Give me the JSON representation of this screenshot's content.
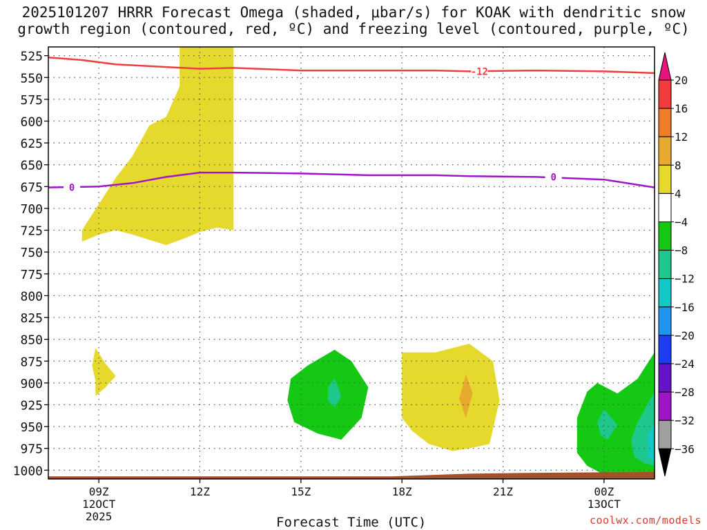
{
  "title_line1": "2025101207 HRRR Forecast Omega (shaded, μbar/s) for KOAK with dendritic snow",
  "title_line2": "growth region (contoured, red, ºC) and freezing level (contoured, purple, ºC)",
  "watermark": "coolwx.com/models",
  "chart_data": {
    "type": "contour",
    "title": "2025101207 HRRR Forecast Omega (shaded, μbar/s) for KOAK with dendritic snow growth region (contoured, red, ºC) and freezing level (contoured, purple, ºC)",
    "xlabel": "Forecast Time (UTC)",
    "ylabel": "",
    "xlim": [
      7.5,
      25.5
    ],
    "ylim": [
      1010,
      515
    ],
    "x_ticks": [
      {
        "value": 9,
        "label": "09Z",
        "date": "12OCT",
        "year": "2025"
      },
      {
        "value": 12,
        "label": "12Z"
      },
      {
        "value": 15,
        "label": "15Z"
      },
      {
        "value": 18,
        "label": "18Z"
      },
      {
        "value": 21,
        "label": "21Z"
      },
      {
        "value": 24,
        "label": "00Z",
        "date": "13OCT"
      }
    ],
    "y_ticks": [
      525,
      550,
      575,
      600,
      625,
      650,
      675,
      700,
      725,
      750,
      775,
      800,
      825,
      850,
      875,
      900,
      925,
      950,
      975,
      1000
    ],
    "grid": true,
    "colorbar": {
      "labels": [
        "20",
        "16",
        "12",
        "8",
        "4",
        "−4",
        "−8",
        "−12",
        "−16",
        "−20",
        "−24",
        "−28",
        "−32",
        "−36"
      ],
      "colors": [
        "#f03c3c",
        "#f07d28",
        "#e8aa2e",
        "#e6d92e",
        "#ffffff",
        "#14c814",
        "#1ec88c",
        "#14c8c8",
        "#1e96f0",
        "#1e3cf0",
        "#6414c8",
        "#a014c8",
        "#a0a0a0"
      ],
      "top_arrow_color": "#e6147d",
      "bottom_arrow_color": "#000000"
    },
    "series": [
      {
        "name": "-12",
        "color": "#f03c3c",
        "points": [
          [
            7.5,
            527
          ],
          [
            8.5,
            530
          ],
          [
            9.5,
            535
          ],
          [
            11,
            538
          ],
          [
            12,
            540
          ],
          [
            13,
            539
          ],
          [
            15,
            542
          ],
          [
            17,
            542
          ],
          [
            19,
            542
          ],
          [
            20,
            543
          ],
          [
            22,
            542
          ],
          [
            24,
            543
          ],
          [
            25.5,
            545
          ]
        ]
      },
      {
        "name": "0",
        "color": "#a014c8",
        "points": [
          [
            7.5,
            676
          ],
          [
            9,
            675
          ],
          [
            10,
            671
          ],
          [
            11,
            664
          ],
          [
            12,
            659
          ],
          [
            13,
            659
          ],
          [
            15,
            660
          ],
          [
            17,
            662
          ],
          [
            19,
            662
          ],
          [
            20,
            663
          ],
          [
            22,
            664
          ],
          [
            24,
            667
          ],
          [
            25.5,
            676
          ]
        ]
      }
    ],
    "shaded_regions": [
      {
        "color": "#e6d92e",
        "points": [
          [
            11.4,
            515
          ],
          [
            13,
            515
          ],
          [
            13,
            725
          ],
          [
            12.5,
            722
          ],
          [
            12,
            727
          ],
          [
            11.5,
            735
          ],
          [
            11,
            742
          ],
          [
            10,
            730
          ],
          [
            9.5,
            725
          ],
          [
            9,
            730
          ],
          [
            8.5,
            738
          ],
          [
            8.5,
            725
          ],
          [
            9,
            695
          ],
          [
            9.5,
            665
          ],
          [
            10,
            640
          ],
          [
            10.5,
            605
          ],
          [
            11,
            595
          ],
          [
            11.4,
            560
          ]
        ]
      },
      {
        "color": "#e6d92e",
        "points": [
          [
            8.9,
            860
          ],
          [
            9.2,
            878
          ],
          [
            9.5,
            892
          ],
          [
            9.2,
            905
          ],
          [
            8.9,
            915
          ],
          [
            8.9,
            898
          ],
          [
            8.8,
            880
          ]
        ]
      },
      {
        "color": "#14c814",
        "points": [
          [
            14.7,
            895
          ],
          [
            15.2,
            880
          ],
          [
            16,
            862
          ],
          [
            16.5,
            875
          ],
          [
            17,
            905
          ],
          [
            16.8,
            940
          ],
          [
            16.2,
            965
          ],
          [
            15.5,
            958
          ],
          [
            14.8,
            945
          ],
          [
            14.6,
            920
          ]
        ]
      },
      {
        "color": "#1ec88c",
        "points": [
          [
            15.8,
            905
          ],
          [
            16,
            895
          ],
          [
            16.2,
            915
          ],
          [
            16,
            928
          ],
          [
            15.8,
            920
          ]
        ]
      },
      {
        "color": "#e6d92e",
        "points": [
          [
            18,
            865
          ],
          [
            19,
            865
          ],
          [
            20,
            855
          ],
          [
            20.7,
            875
          ],
          [
            20.9,
            920
          ],
          [
            20.6,
            970
          ],
          [
            20,
            975
          ],
          [
            19.5,
            978
          ],
          [
            18.8,
            970
          ],
          [
            18.3,
            955
          ],
          [
            18,
            940
          ]
        ]
      },
      {
        "color": "#e8aa2e",
        "points": [
          [
            19.9,
            890
          ],
          [
            20.1,
            912
          ],
          [
            19.9,
            940
          ],
          [
            19.7,
            918
          ]
        ]
      },
      {
        "color": "#14c814",
        "points": [
          [
            23.2,
            940
          ],
          [
            23.5,
            910
          ],
          [
            23.8,
            900
          ],
          [
            24.4,
            912
          ],
          [
            25,
            895
          ],
          [
            25.5,
            865
          ],
          [
            25.5,
            1005
          ],
          [
            24,
            1005
          ],
          [
            23.5,
            995
          ],
          [
            23.2,
            980
          ]
        ]
      },
      {
        "color": "#1ec88c",
        "points": [
          [
            23.8,
            945
          ],
          [
            24,
            930
          ],
          [
            24.4,
            948
          ],
          [
            24.1,
            965
          ],
          [
            23.9,
            960
          ]
        ]
      },
      {
        "color": "#1ec88c",
        "points": [
          [
            25,
            945
          ],
          [
            25.5,
            910
          ],
          [
            25.5,
            995
          ],
          [
            25.2,
            992
          ],
          [
            24.9,
            985
          ],
          [
            24.8,
            965
          ]
        ]
      },
      {
        "color": "#14c8c8",
        "points": [
          [
            25.3,
            960
          ],
          [
            25.5,
            945
          ],
          [
            25.5,
            990
          ],
          [
            25.3,
            985
          ]
        ]
      }
    ],
    "terrain": {
      "color": "#a0522d",
      "points": [
        [
          7.5,
          1007
        ],
        [
          17.7,
          1007
        ],
        [
          20,
          1004
        ],
        [
          22,
          1003
        ],
        [
          25.5,
          1002
        ]
      ]
    }
  }
}
